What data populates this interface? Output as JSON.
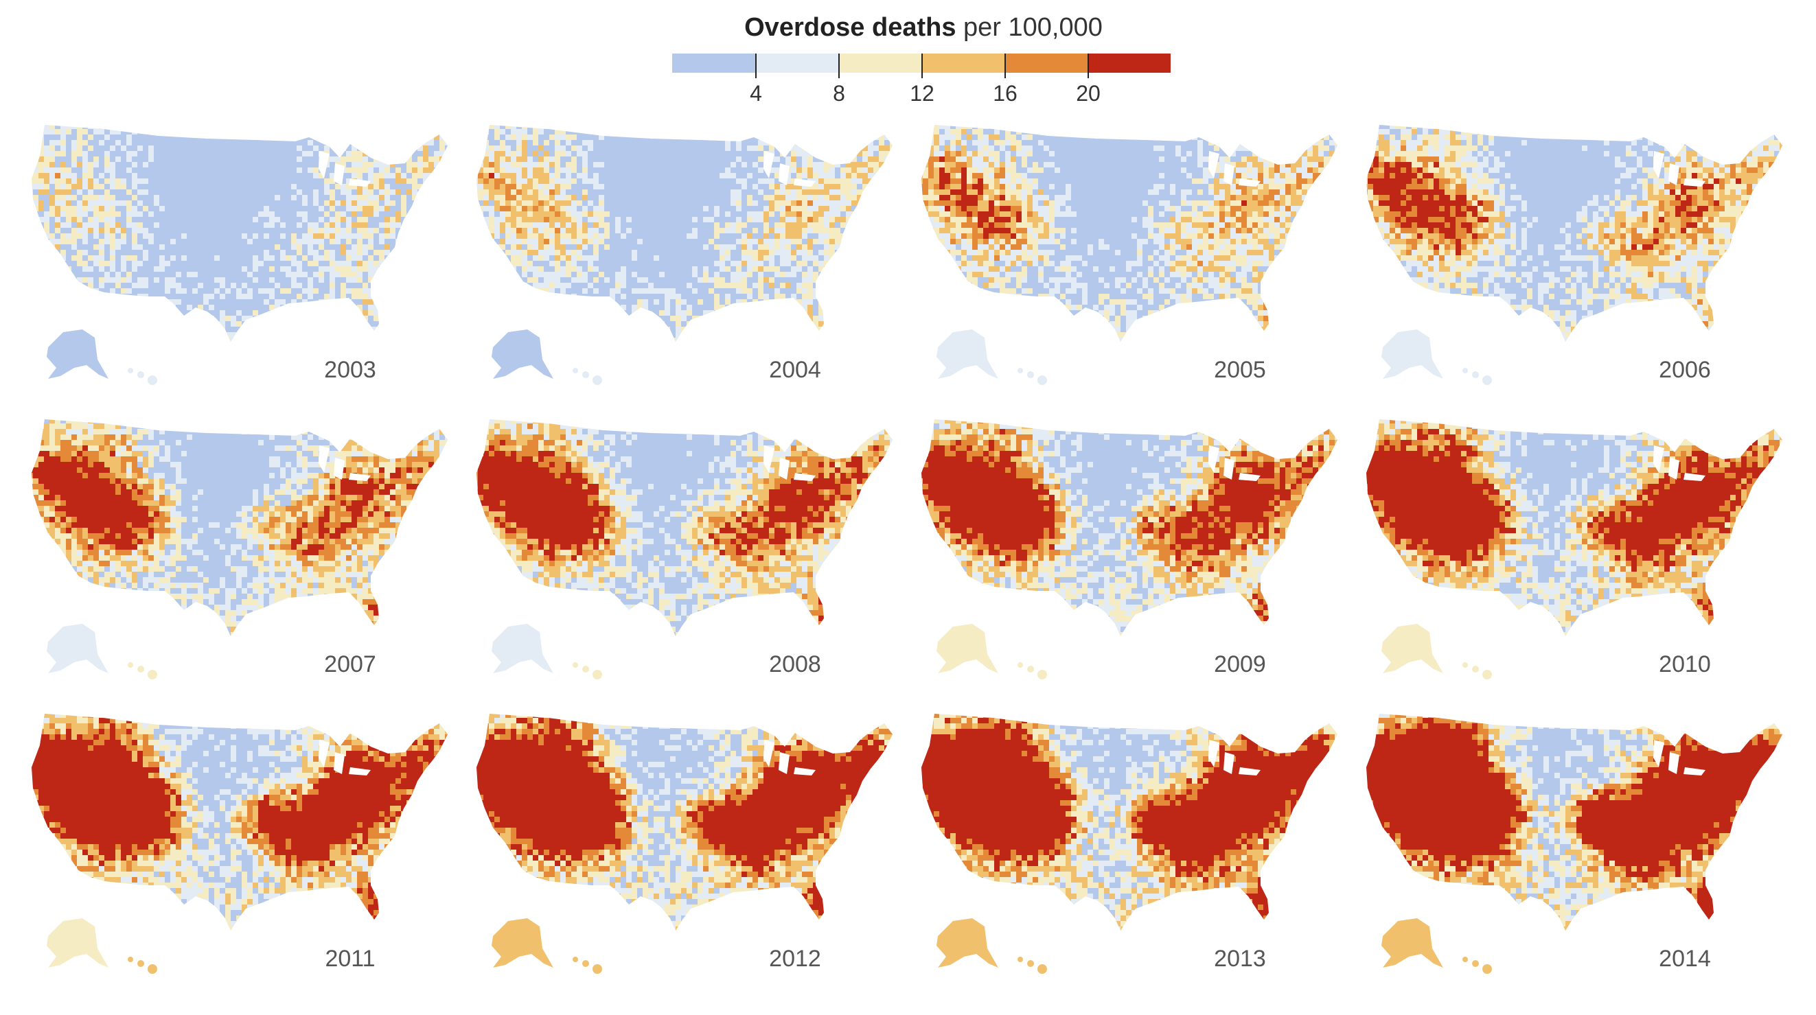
{
  "legend": {
    "title_bold": "Overdose deaths",
    "title_light": "per 100,000",
    "bins": [
      {
        "color": "#b3c8eb"
      },
      {
        "color": "#e3ebf5"
      },
      {
        "color": "#f6ecc4"
      },
      {
        "color": "#f0c06d"
      },
      {
        "color": "#e38938"
      },
      {
        "color": "#be2715"
      }
    ],
    "tick_labels": [
      "4",
      "8",
      "12",
      "16",
      "20"
    ]
  },
  "maps": [
    {
      "year": "2003",
      "intensity": 0.1
    },
    {
      "year": "2004",
      "intensity": 0.17
    },
    {
      "year": "2005",
      "intensity": 0.25
    },
    {
      "year": "2006",
      "intensity": 0.33
    },
    {
      "year": "2007",
      "intensity": 0.4
    },
    {
      "year": "2008",
      "intensity": 0.48
    },
    {
      "year": "2009",
      "intensity": 0.55
    },
    {
      "year": "2010",
      "intensity": 0.62
    },
    {
      "year": "2011",
      "intensity": 0.7
    },
    {
      "year": "2012",
      "intensity": 0.78
    },
    {
      "year": "2013",
      "intensity": 0.86
    },
    {
      "year": "2014",
      "intensity": 0.95
    }
  ]
}
